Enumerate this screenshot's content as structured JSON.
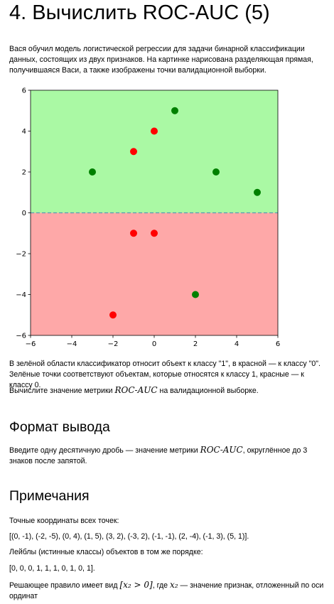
{
  "page": {
    "title": "4. Вычислить ROC-AUC (5)",
    "intro": "Вася обучил модель логистической регрессии для задачи бинарной классификации данных, состоящих из двух признаков. На картинке нарисована разделяющая прямая, получившаяся Васи, а также изображены точки валидационной выборки.",
    "after_plot_1": "В зелёной области классификатор относит объект к классу \"1\", в красной — к классу \"0\". Зелёные точки соответствуют объектам, которые относятся к классу 1, красные — к классу 0.",
    "task_prefix": "Вычислите значение метрики ",
    "task_metric": "ROC-AUC",
    "task_suffix": " на валидационной выборке.",
    "output_heading": "Формат вывода",
    "output_prefix": "Введите одну десятичную дробь — значение метрики ",
    "output_metric": "ROC-AUC",
    "output_suffix": ", округлённое до 3 знаков после запятой.",
    "notes_heading": "Примечания",
    "coords_label": "Точные координаты всех точек:",
    "coords_value": "[(0, -1), (-2, -5), (0, 4), (1, 5), (3, 2), (-3, 2), (-1, -1), (2, -4), (-1, 3), (5, 1)].",
    "labels_label": "Лейблы (истинные классы) объектов в том же порядке:",
    "labels_value": "[0, 0, 0, 1, 1, 1, 0, 1, 0, 1].",
    "rule_prefix": "Решающее правило имеет вид ",
    "rule_formula": "[x₂ > 0]",
    "rule_mid": ", где ",
    "rule_var": "x₂",
    "rule_suffix": " — значение признак, отложенный по оси ординат"
  },
  "chart_data": {
    "type": "scatter",
    "title": "",
    "xlabel": "",
    "ylabel": "",
    "xlim": [
      -6,
      6
    ],
    "ylim": [
      -6,
      6
    ],
    "x_ticks": [
      -6,
      -4,
      -2,
      0,
      2,
      4,
      6
    ],
    "y_ticks": [
      -6,
      -4,
      -2,
      0,
      2,
      4,
      6
    ],
    "grid": false,
    "regions": [
      {
        "class": "1",
        "y_range": [
          0,
          6
        ],
        "color": "#aaf9a4"
      },
      {
        "class": "0",
        "y_range": [
          -6,
          0
        ],
        "color": "#fea8a8"
      }
    ],
    "decision_line": {
      "y": 0,
      "style": "dashed",
      "color": "#5a9bb0"
    },
    "series": [
      {
        "color": "#008000",
        "points": [
          [
            1,
            5
          ],
          [
            3,
            2
          ],
          [
            -3,
            2
          ],
          [
            2,
            -4
          ],
          [
            5,
            1
          ]
        ]
      },
      {
        "color": "#ff0000",
        "points": [
          [
            0,
            -1
          ],
          [
            -2,
            -5
          ],
          [
            0,
            4
          ],
          [
            -1,
            -1
          ],
          [
            -1,
            3
          ]
        ]
      }
    ]
  }
}
